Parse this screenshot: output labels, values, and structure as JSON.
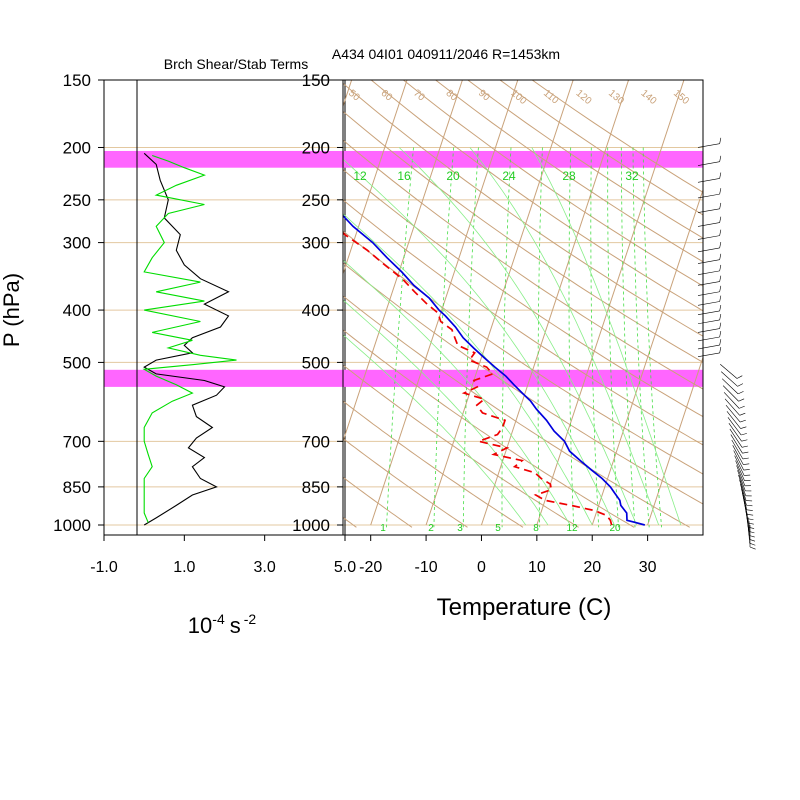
{
  "chart_data": [
    {
      "type": "line",
      "title": "Brch Shear/Stab Terms",
      "xlabel": "10^-4 s^-2",
      "xlabel_base": "10",
      "xlabel_base_exp": "-4",
      "xlabel_unit": "s",
      "xlabel_unit_exp": "-2",
      "ylabel": "P (hPa)",
      "xlim": [
        -1.0,
        5.0
      ],
      "xticks": [
        "-1.0",
        "1.0",
        "3.0",
        "5.0"
      ],
      "xtick_values": [
        -1.0,
        1.0,
        3.0,
        5.0
      ],
      "y_scale": "log",
      "ylim": [
        1000,
        150
      ],
      "yticks": [
        150,
        200,
        250,
        300,
        400,
        500,
        700,
        850,
        1000
      ],
      "highlight_bands_hPa": [
        [
          203,
          218
        ],
        [
          516,
          555
        ]
      ],
      "series": [
        {
          "color": "#000000",
          "p": [
            1000,
            970,
            920,
            880,
            850,
            820,
            780,
            750,
            720,
            690,
            660,
            630,
            600,
            575,
            555,
            540,
            525,
            510,
            495,
            480,
            465,
            450,
            430,
            410,
            390,
            370,
            350,
            330,
            310,
            290,
            270,
            250,
            230,
            215,
            205
          ],
          "x": [
            0.0,
            0.3,
            0.8,
            1.2,
            1.8,
            1.4,
            1.2,
            1.5,
            1.1,
            1.3,
            1.7,
            1.3,
            1.2,
            1.8,
            2.0,
            1.5,
            0.3,
            0.0,
            0.3,
            1.2,
            1.0,
            1.2,
            1.9,
            2.1,
            1.5,
            2.1,
            1.4,
            1.0,
            0.8,
            0.9,
            0.5,
            0.6,
            0.4,
            0.3,
            0.0
          ]
        },
        {
          "color": "#00dd00",
          "p": [
            990,
            950,
            900,
            870,
            850,
            820,
            780,
            740,
            700,
            660,
            620,
            590,
            570,
            550,
            530,
            515,
            505,
            495,
            485,
            470,
            455,
            440,
            420,
            400,
            385,
            370,
            355,
            340,
            320,
            300,
            280,
            265,
            255,
            245,
            235,
            225,
            218,
            212,
            207
          ],
          "x": [
            0.1,
            0.0,
            0.0,
            0.0,
            0.0,
            0.0,
            0.2,
            0.1,
            0.0,
            0.0,
            0.2,
            0.7,
            1.2,
            0.8,
            0.3,
            0.0,
            1.2,
            2.3,
            1.4,
            0.6,
            1.2,
            0.2,
            1.4,
            0.0,
            1.5,
            0.3,
            1.4,
            0.0,
            0.2,
            0.5,
            0.3,
            0.6,
            1.5,
            0.3,
            0.8,
            1.5,
            1.0,
            0.6,
            0.2
          ]
        }
      ]
    },
    {
      "type": "line",
      "title": "A434 04I01 040911/2046 R=1453km",
      "xlabel": "Temperature (C)",
      "xlim": [
        -25,
        40
      ],
      "xticks": [
        "-20",
        "-10",
        "0",
        "10",
        "20",
        "30"
      ],
      "xtick_values": [
        -20,
        -10,
        0,
        10,
        20,
        30
      ],
      "y_scale": "log",
      "ylim": [
        1000,
        150
      ],
      "yticks": [
        150,
        200,
        250,
        300,
        400,
        500,
        700,
        850,
        1000
      ],
      "highlight_bands_hPa": [
        [
          203,
          218
        ],
        [
          516,
          555
        ]
      ],
      "isotherm_skew": 14,
      "dry_adiabat_labels": [
        "50",
        "60",
        "70",
        "80",
        "90",
        "100",
        "110",
        "120",
        "130",
        "140",
        "150"
      ],
      "mixing_ratio_labels_top": [
        "12",
        "16",
        "20",
        "24",
        "28",
        "32"
      ],
      "mixing_ratio_labels_bottom": [
        "1",
        "2",
        "3",
        "5",
        "8",
        "12",
        "20"
      ],
      "series": [
        {
          "name": "Temperature",
          "color": "#0000dd",
          "p": [
            1000,
            980,
            950,
            920,
            900,
            870,
            850,
            820,
            790,
            760,
            730,
            700,
            670,
            640,
            610,
            590,
            570,
            550,
            530,
            510,
            490,
            470,
            450,
            430,
            410,
            400,
            380,
            360,
            340,
            320,
            300,
            280,
            260,
            240,
            220,
            200
          ],
          "t": [
            29.5,
            26.0,
            25.5,
            24.0,
            23.5,
            22.0,
            21.0,
            19.0,
            16.5,
            14.0,
            11.5,
            10.0,
            7.5,
            5.5,
            3.0,
            1.5,
            -0.5,
            -2.5,
            -4.5,
            -7.0,
            -9.5,
            -12.0,
            -14.5,
            -16.5,
            -19.0,
            -20.5,
            -23.0,
            -26.5,
            -29.5,
            -33.0,
            -36.5,
            -41.0,
            -45.0,
            -49.5,
            -55.0,
            -59.5
          ]
        },
        {
          "name": "Dewpoint",
          "color": "#ee0000",
          "dashed": true,
          "p": [
            1000,
            980,
            960,
            940,
            920,
            900,
            880,
            860,
            840,
            820,
            800,
            780,
            760,
            740,
            720,
            700,
            680,
            660,
            640,
            620,
            600,
            585,
            570,
            555,
            540,
            525,
            510,
            495,
            480,
            465,
            450,
            435,
            420,
            405,
            390,
            370,
            350,
            330,
            310,
            290,
            270,
            250,
            230,
            215
          ],
          "t": [
            23.5,
            23.0,
            22.0,
            19.5,
            15.0,
            10.0,
            8.0,
            10.5,
            10.0,
            8.0,
            6.5,
            2.5,
            3.5,
            -2.0,
            0.0,
            -5.5,
            -2.5,
            -2.0,
            -2.0,
            -6.5,
            -8.0,
            -7.0,
            -11.0,
            -9.0,
            -10.0,
            -7.0,
            -8.5,
            -12.0,
            -11.5,
            -15.0,
            -16.0,
            -17.0,
            -19.5,
            -20.5,
            -23.0,
            -26.0,
            -29.0,
            -33.0,
            -37.0,
            -42.0,
            -46.0,
            -51.0,
            -56.0,
            -61.0
          ]
        }
      ]
    }
  ]
}
